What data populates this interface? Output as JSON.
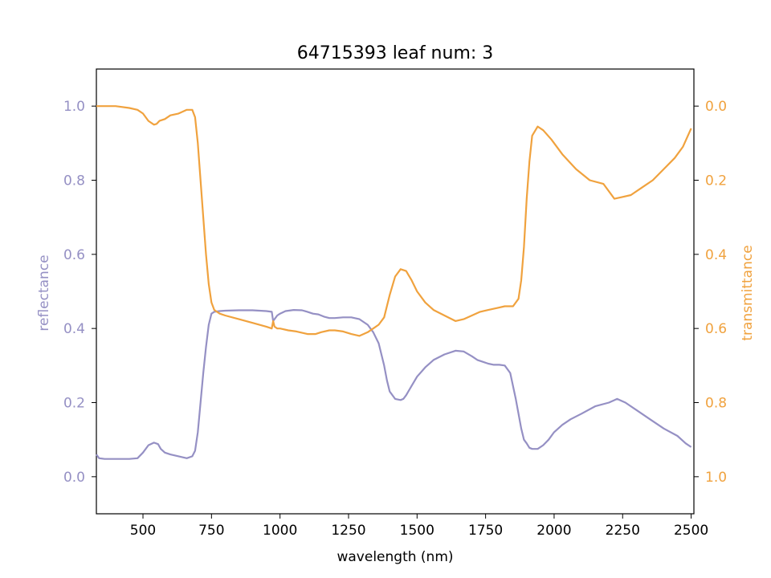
{
  "chart_data": {
    "type": "line",
    "title": "64715393 leaf num: 3",
    "xlabel": "wavelength (nm)",
    "ylabel_left": "reflectance",
    "ylabel_right": "transmittance",
    "xlim": [
      330,
      2510
    ],
    "ylim_left": [
      -0.1,
      1.1
    ],
    "ylim_right": [
      1.1,
      -0.1
    ],
    "x_ticks": [
      500,
      750,
      1000,
      1250,
      1500,
      1750,
      2000,
      2250,
      2500
    ],
    "y_ticks_left": [
      0.0,
      0.2,
      0.4,
      0.6,
      0.8,
      1.0
    ],
    "y_ticks_right": [
      0.0,
      0.2,
      0.4,
      0.6,
      0.8,
      1.0
    ],
    "y_tick_labels_left": [
      "0.0",
      "0.2",
      "0.4",
      "0.6",
      "0.8",
      "1.0"
    ],
    "y_tick_labels_right": [
      "0.0",
      "0.2",
      "0.4",
      "0.6",
      "0.8",
      "1.0"
    ],
    "grid": false,
    "colors": {
      "reflectance": "#9590c4",
      "transmittance": "#f0a23e"
    },
    "series": [
      {
        "axis": "left",
        "x": [
          330,
          340,
          360,
          400,
          450,
          480,
          500,
          520,
          540,
          555,
          565,
          580,
          600,
          630,
          660,
          680,
          690,
          700,
          710,
          720,
          730,
          740,
          750,
          760,
          780,
          800,
          850,
          900,
          950,
          970,
          975,
          980,
          990,
          1000,
          1020,
          1050,
          1080,
          1100,
          1120,
          1140,
          1160,
          1180,
          1200,
          1230,
          1260,
          1290,
          1320,
          1340,
          1360,
          1380,
          1390,
          1400,
          1420,
          1440,
          1450,
          1460,
          1480,
          1500,
          1530,
          1560,
          1600,
          1640,
          1670,
          1700,
          1720,
          1740,
          1760,
          1780,
          1800,
          1820,
          1840,
          1860,
          1870,
          1880,
          1890,
          1900,
          1910,
          1920,
          1940,
          1960,
          1980,
          2000,
          2030,
          2060,
          2100,
          2150,
          2200,
          2230,
          2260,
          2300,
          2350,
          2400,
          2450,
          2480,
          2500
        ],
        "y": [
          0.06,
          0.05,
          0.048,
          0.048,
          0.048,
          0.05,
          0.065,
          0.085,
          0.092,
          0.088,
          0.075,
          0.065,
          0.06,
          0.055,
          0.05,
          0.055,
          0.07,
          0.12,
          0.2,
          0.28,
          0.35,
          0.41,
          0.44,
          0.445,
          0.447,
          0.448,
          0.449,
          0.449,
          0.447,
          0.445,
          0.42,
          0.425,
          0.435,
          0.44,
          0.447,
          0.45,
          0.449,
          0.445,
          0.44,
          0.438,
          0.432,
          0.428,
          0.428,
          0.43,
          0.43,
          0.425,
          0.41,
          0.39,
          0.36,
          0.3,
          0.26,
          0.23,
          0.21,
          0.207,
          0.21,
          0.22,
          0.245,
          0.27,
          0.295,
          0.315,
          0.33,
          0.34,
          0.338,
          0.325,
          0.315,
          0.31,
          0.305,
          0.302,
          0.302,
          0.3,
          0.28,
          0.21,
          0.17,
          0.13,
          0.1,
          0.09,
          0.078,
          0.075,
          0.075,
          0.085,
          0.1,
          0.12,
          0.14,
          0.155,
          0.17,
          0.19,
          0.2,
          0.21,
          0.2,
          0.18,
          0.155,
          0.13,
          0.11,
          0.09,
          0.08
        ]
      },
      {
        "axis": "right",
        "x": [
          330,
          350,
          370,
          400,
          450,
          480,
          500,
          520,
          540,
          550,
          560,
          580,
          600,
          630,
          660,
          680,
          690,
          700,
          710,
          720,
          730,
          740,
          750,
          760,
          780,
          800,
          850,
          900,
          950,
          970,
          975,
          980,
          990,
          1000,
          1030,
          1060,
          1100,
          1130,
          1150,
          1180,
          1200,
          1230,
          1260,
          1290,
          1320,
          1340,
          1360,
          1380,
          1400,
          1420,
          1440,
          1460,
          1480,
          1500,
          1530,
          1560,
          1600,
          1640,
          1670,
          1700,
          1730,
          1760,
          1790,
          1820,
          1850,
          1870,
          1880,
          1890,
          1900,
          1910,
          1920,
          1940,
          1960,
          1990,
          2030,
          2080,
          2130,
          2180,
          2220,
          2250,
          2280,
          2320,
          2360,
          2400,
          2440,
          2470,
          2500
        ],
        "y": [
          0.0,
          0.0,
          0.0,
          0.0,
          0.005,
          0.01,
          0.02,
          0.04,
          0.05,
          0.048,
          0.04,
          0.035,
          0.025,
          0.02,
          0.01,
          0.01,
          0.03,
          0.1,
          0.2,
          0.3,
          0.4,
          0.48,
          0.53,
          0.55,
          0.56,
          0.565,
          0.575,
          0.585,
          0.595,
          0.6,
          0.58,
          0.595,
          0.6,
          0.6,
          0.605,
          0.608,
          0.615,
          0.615,
          0.61,
          0.605,
          0.605,
          0.608,
          0.615,
          0.62,
          0.61,
          0.6,
          0.59,
          0.57,
          0.51,
          0.46,
          0.44,
          0.445,
          0.47,
          0.5,
          0.53,
          0.55,
          0.565,
          0.58,
          0.575,
          0.565,
          0.555,
          0.55,
          0.545,
          0.54,
          0.54,
          0.52,
          0.47,
          0.38,
          0.25,
          0.15,
          0.08,
          0.055,
          0.065,
          0.09,
          0.13,
          0.17,
          0.2,
          0.21,
          0.25,
          0.245,
          0.24,
          0.22,
          0.2,
          0.17,
          0.14,
          0.11,
          0.06
        ]
      }
    ]
  }
}
